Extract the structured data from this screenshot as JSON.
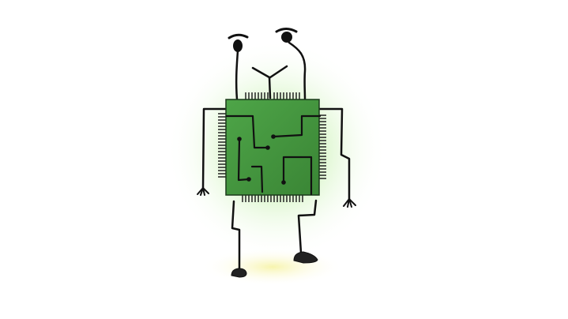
{
  "illustration": {
    "subject": "cartoon-chip-robot",
    "colors": {
      "background": "#ffffff",
      "chip_fill": "#3f8f3b",
      "chip_fill_light": "#4ea548",
      "chip_border": "#1b3a1b",
      "ink": "#111111",
      "glow_green": "#b9ee9e",
      "glow_yellow": "#f7f7b8",
      "shoe": "#222222"
    }
  }
}
